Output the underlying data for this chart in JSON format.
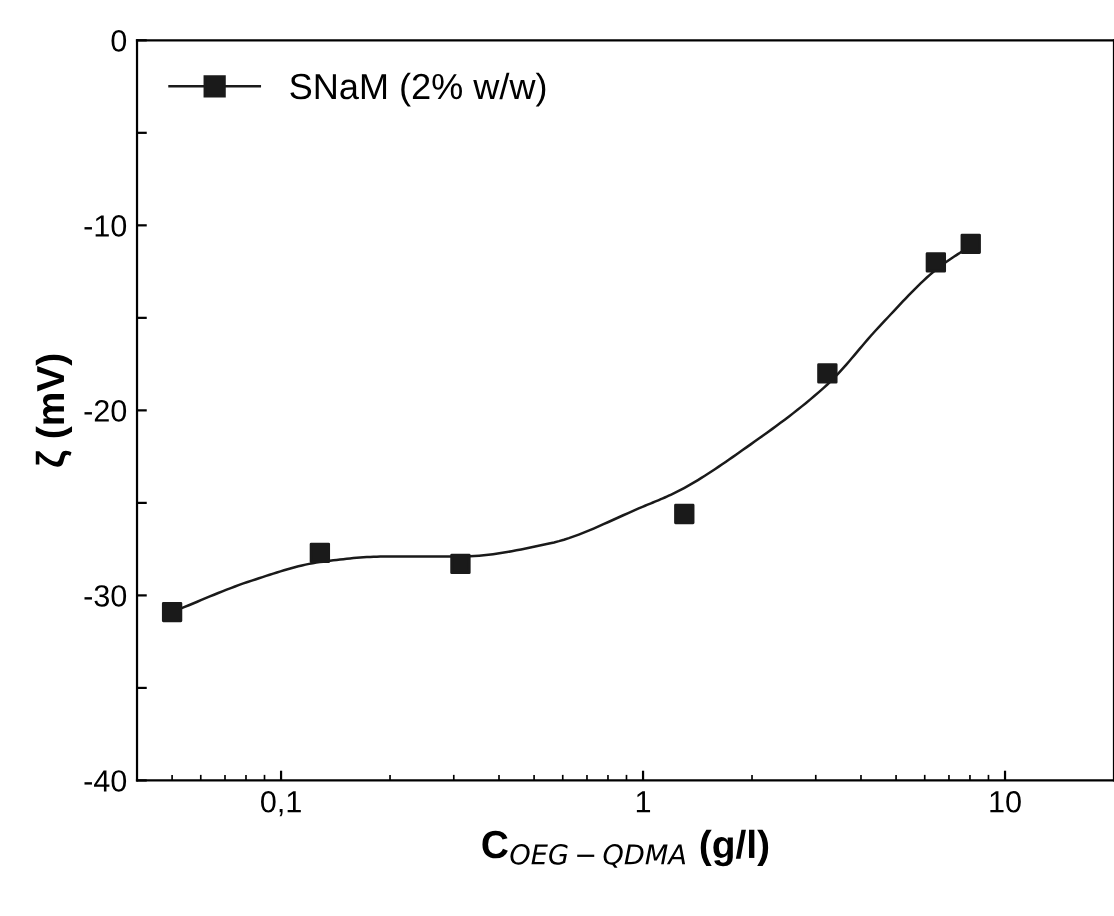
{
  "chart_data": {
    "type": "scatter",
    "xlabel": "C$_{OEG−QDMA}$ (g/l)",
    "ylabel": "ζ (mV)",
    "log": "x",
    "marker": "square",
    "legend": "top left",
    "grid": false,
    "xlim": [
      0.04,
      20
    ],
    "xticks": [
      {
        "value": 0.1,
        "label": "0,1"
      },
      1,
      10
    ],
    "ylim": [
      -40,
      0
    ],
    "yticks": [
      -40,
      {
        "value": -35,
        "label": null
      },
      -30,
      {
        "value": -25,
        "label": null
      },
      -20,
      {
        "value": -15,
        "label": null
      },
      -10,
      {
        "value": -5,
        "label": null
      },
      0
    ],
    "series": [
      {
        "name": "SNaM (2% w/w)",
        "color": "#1a1a1a",
        "x": [
          0.05,
          0.128,
          0.313,
          1.3,
          3.23,
          6.44,
          8.04
        ],
        "values": [
          -30.9,
          -27.7,
          -28.3,
          -25.6,
          -18.0,
          -12.0,
          -11.0
        ]
      },
      {
        "type": "line",
        "color": "#1a1a1a",
        "marker": "none",
        "x": [
          0.05,
          0.083,
          0.128,
          0.192,
          0.313,
          0.55,
          1.0,
          1.27,
          1.93,
          3.23,
          4.48,
          6.44,
          8.04
        ],
        "values": [
          -30.9,
          -29.2,
          -28.2,
          -27.9,
          -27.9,
          -27.2,
          -25.2,
          -24.3,
          -22.0,
          -18.6,
          -15.5,
          -12.4,
          -11.1
        ]
      }
    ]
  }
}
